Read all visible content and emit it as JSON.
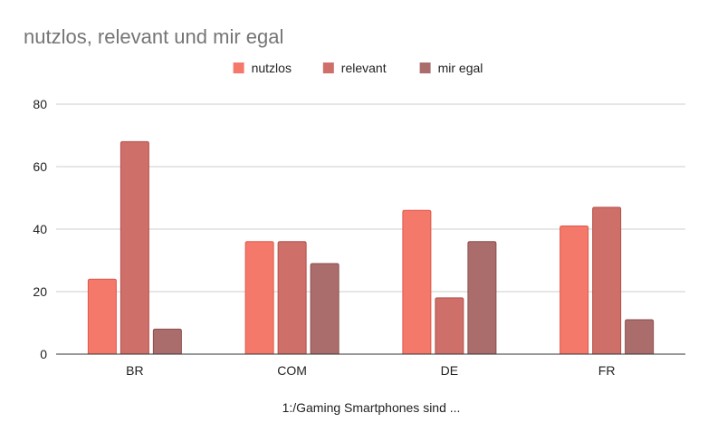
{
  "chart_data": {
    "type": "bar",
    "title": "nutzlos, relevant und mir egal",
    "xlabel": "1:/Gaming Smartphones sind ...",
    "ylabel": "",
    "ylim": [
      0,
      80
    ],
    "yticks": [
      0,
      20,
      40,
      60,
      80
    ],
    "grid": true,
    "legend_position": "top-center",
    "categories": [
      "BR",
      "COM",
      "DE",
      "FR"
    ],
    "series": [
      {
        "name": "nutzlos",
        "color": "#F4796A",
        "stroke": "#E0574A",
        "values": [
          24,
          36,
          46,
          41
        ]
      },
      {
        "name": "relevant",
        "color": "#CF6F69",
        "stroke": "#B4504B",
        "values": [
          68,
          36,
          18,
          47
        ]
      },
      {
        "name": "mir egal",
        "color": "#AA6D6C",
        "stroke": "#8C4E4D",
        "values": [
          8,
          29,
          36,
          11
        ]
      }
    ]
  },
  "colors": {
    "title": "#757575",
    "text": "#222222",
    "grid": "#CCCCCC",
    "axis": "#333333"
  }
}
